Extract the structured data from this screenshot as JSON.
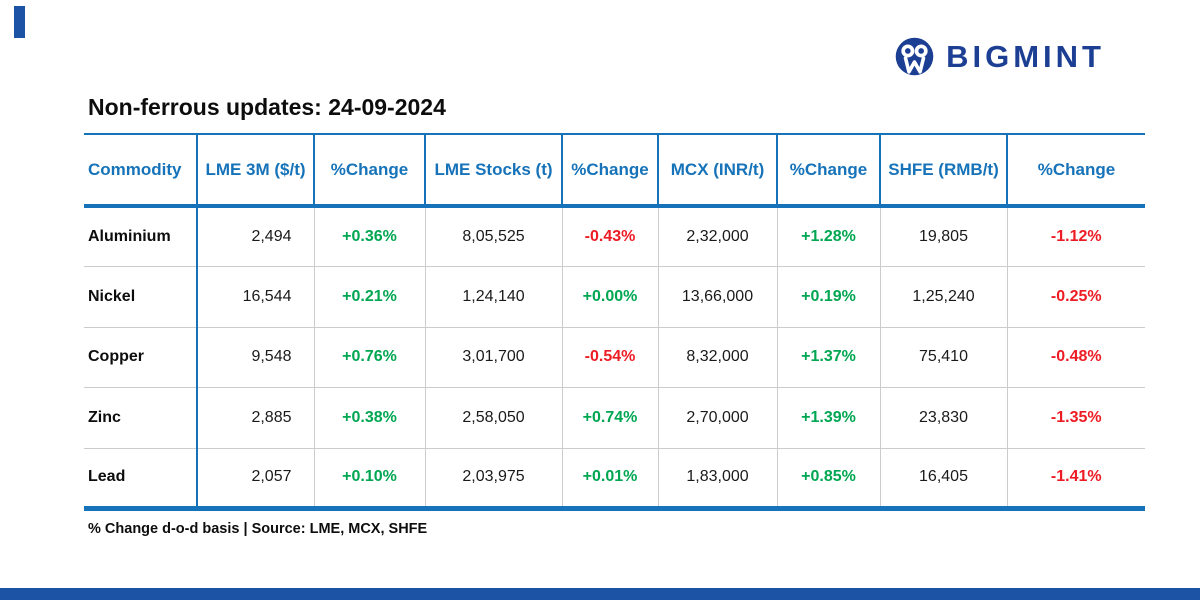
{
  "brand": {
    "name": "BIGMINT",
    "navy": "#1c3f94",
    "blue": "#1673b9",
    "bar_blue": "#1d53a4"
  },
  "title": "Non-ferrous updates: 24-09-2024",
  "footnote": "% Change d-o-d basis | Source: LME, MCX, SHFE",
  "colors": {
    "positive_change": "#00a651",
    "negative_change": "#ed1c24",
    "grid_line": "#cccccc"
  },
  "table": {
    "columns": [
      "Commodity",
      "LME 3M ($/t)",
      "%Change",
      "LME Stocks (t)",
      "%Change",
      "MCX (INR/t)",
      "%Change",
      "SHFE (RMB/t)",
      "%Change"
    ],
    "rows": [
      {
        "commodity": "Aluminium",
        "values": [
          "2,494",
          "+0.36%",
          "8,05,525",
          "-0.43%",
          "2,32,000",
          "+1.28%",
          "19,805",
          "-1.12%"
        ]
      },
      {
        "commodity": "Nickel",
        "values": [
          "16,544",
          "+0.21%",
          "1,24,140",
          "+0.00%",
          "13,66,000",
          "+0.19%",
          "1,25,240",
          "-0.25%"
        ]
      },
      {
        "commodity": "Copper",
        "values": [
          "9,548",
          "+0.76%",
          "3,01,700",
          "-0.54%",
          "8,32,000",
          "+1.37%",
          "75,410",
          "-0.48%"
        ]
      },
      {
        "commodity": "Zinc",
        "values": [
          "2,885",
          "+0.38%",
          "2,58,050",
          "+0.74%",
          "2,70,000",
          "+1.39%",
          "23,830",
          "-1.35%"
        ]
      },
      {
        "commodity": "Lead",
        "values": [
          "2,057",
          "+0.10%",
          "2,03,975",
          "+0.01%",
          "1,83,000",
          "+0.85%",
          "16,405",
          "-1.41%"
        ]
      }
    ]
  }
}
